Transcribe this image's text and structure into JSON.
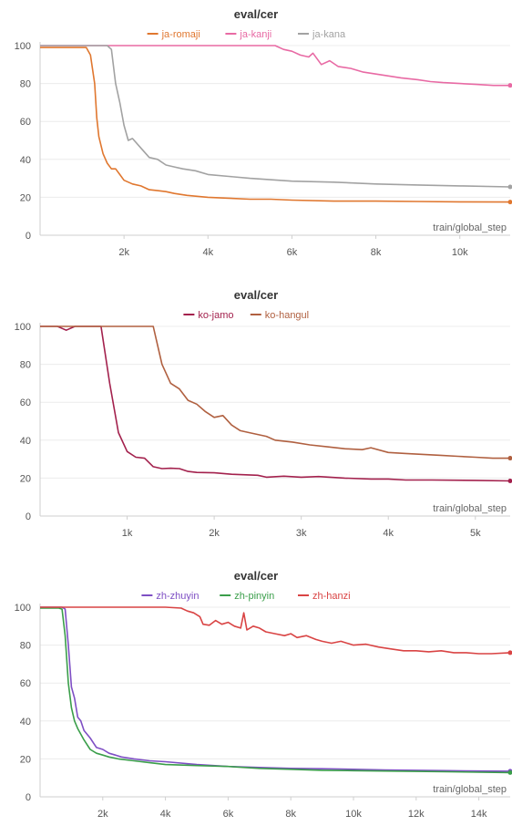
{
  "chart_data": [
    {
      "type": "line",
      "title": "eval/cer",
      "xlabel": "train/global_step",
      "xlim": [
        0,
        11200
      ],
      "ylim": [
        0,
        100
      ],
      "xticks": [
        2000,
        4000,
        6000,
        8000,
        10000
      ],
      "xtick_labels": [
        "2k",
        "4k",
        "6k",
        "8k",
        "10k"
      ],
      "yticks": [
        0,
        20,
        40,
        60,
        80,
        100
      ],
      "legend": "top-center",
      "series": [
        {
          "name": "ja-romaji",
          "color": "#e0772f",
          "points": [
            [
              0,
              99
            ],
            [
              600,
              99
            ],
            [
              1100,
              99
            ],
            [
              1200,
              95
            ],
            [
              1300,
              80
            ],
            [
              1350,
              62
            ],
            [
              1400,
              52
            ],
            [
              1500,
              43
            ],
            [
              1600,
              38
            ],
            [
              1700,
              35
            ],
            [
              1800,
              35
            ],
            [
              1900,
              32
            ],
            [
              2000,
              29
            ],
            [
              2200,
              27
            ],
            [
              2400,
              26
            ],
            [
              2600,
              24
            ],
            [
              2800,
              23.5
            ],
            [
              3000,
              23
            ],
            [
              3200,
              22
            ],
            [
              3500,
              21
            ],
            [
              4000,
              20
            ],
            [
              4500,
              19.5
            ],
            [
              5000,
              19
            ],
            [
              5500,
              19
            ],
            [
              6000,
              18.5
            ],
            [
              7000,
              18
            ],
            [
              8000,
              18
            ],
            [
              9000,
              17.8
            ],
            [
              10000,
              17.6
            ],
            [
              11200,
              17.5
            ]
          ]
        },
        {
          "name": "ja-kanji",
          "color": "#e86aa4",
          "points": [
            [
              0,
              100
            ],
            [
              2000,
              100
            ],
            [
              4000,
              100
            ],
            [
              5600,
              100
            ],
            [
              5800,
              98
            ],
            [
              6000,
              97
            ],
            [
              6200,
              95
            ],
            [
              6400,
              94
            ],
            [
              6500,
              96
            ],
            [
              6700,
              90
            ],
            [
              6900,
              92
            ],
            [
              7100,
              89
            ],
            [
              7400,
              88
            ],
            [
              7700,
              86
            ],
            [
              8000,
              85
            ],
            [
              8300,
              84
            ],
            [
              8600,
              83
            ],
            [
              9000,
              82
            ],
            [
              9300,
              81
            ],
            [
              9600,
              80.5
            ],
            [
              10000,
              80
            ],
            [
              10400,
              79.5
            ],
            [
              10800,
              79
            ],
            [
              11200,
              79
            ]
          ]
        },
        {
          "name": "ja-kana",
          "color": "#a2a2a2",
          "points": [
            [
              0,
              100
            ],
            [
              1600,
              100
            ],
            [
              1700,
              98
            ],
            [
              1800,
              80
            ],
            [
              1900,
              70
            ],
            [
              2000,
              58
            ],
            [
              2100,
              50
            ],
            [
              2200,
              51
            ],
            [
              2400,
              46
            ],
            [
              2600,
              41
            ],
            [
              2800,
              40
            ],
            [
              3000,
              37
            ],
            [
              3200,
              36
            ],
            [
              3400,
              35
            ],
            [
              3700,
              34
            ],
            [
              4000,
              32
            ],
            [
              4500,
              31
            ],
            [
              5000,
              30
            ],
            [
              6000,
              28.5
            ],
            [
              7000,
              28
            ],
            [
              8000,
              27
            ],
            [
              9000,
              26.5
            ],
            [
              10000,
              26
            ],
            [
              11200,
              25.5
            ]
          ]
        }
      ]
    },
    {
      "type": "line",
      "title": "eval/cer",
      "xlabel": "train/global_step",
      "xlim": [
        0,
        5400
      ],
      "ylim": [
        0,
        100
      ],
      "xticks": [
        1000,
        2000,
        3000,
        4000,
        5000
      ],
      "xtick_labels": [
        "1k",
        "2k",
        "3k",
        "4k",
        "5k"
      ],
      "yticks": [
        0,
        20,
        40,
        60,
        80,
        100
      ],
      "legend": "top-center",
      "series": [
        {
          "name": "ko-jamo",
          "color": "#a3214d",
          "points": [
            [
              0,
              100
            ],
            [
              200,
              100
            ],
            [
              300,
              98
            ],
            [
              400,
              100
            ],
            [
              600,
              100
            ],
            [
              700,
              100
            ],
            [
              800,
              70
            ],
            [
              900,
              44
            ],
            [
              1000,
              34
            ],
            [
              1100,
              31
            ],
            [
              1200,
              30.5
            ],
            [
              1300,
              26
            ],
            [
              1400,
              25
            ],
            [
              1500,
              25.2
            ],
            [
              1600,
              25
            ],
            [
              1700,
              23.5
            ],
            [
              1800,
              23
            ],
            [
              2000,
              22.8
            ],
            [
              2200,
              22
            ],
            [
              2500,
              21.5
            ],
            [
              2600,
              20.5
            ],
            [
              2800,
              21
            ],
            [
              3000,
              20.5
            ],
            [
              3200,
              20.8
            ],
            [
              3500,
              20
            ],
            [
              3800,
              19.5
            ],
            [
              4000,
              19.5
            ],
            [
              4200,
              19
            ],
            [
              4500,
              19
            ],
            [
              5000,
              18.8
            ],
            [
              5400,
              18.5
            ]
          ]
        },
        {
          "name": "ko-hangul",
          "color": "#b06040",
          "points": [
            [
              0,
              100
            ],
            [
              600,
              100
            ],
            [
              800,
              100
            ],
            [
              1000,
              100
            ],
            [
              1200,
              100
            ],
            [
              1300,
              100
            ],
            [
              1400,
              80
            ],
            [
              1500,
              70
            ],
            [
              1600,
              67
            ],
            [
              1700,
              61
            ],
            [
              1800,
              59
            ],
            [
              1900,
              55
            ],
            [
              2000,
              52
            ],
            [
              2100,
              53
            ],
            [
              2200,
              48
            ],
            [
              2300,
              45
            ],
            [
              2400,
              44
            ],
            [
              2600,
              42
            ],
            [
              2700,
              40
            ],
            [
              2900,
              39
            ],
            [
              3100,
              37.5
            ],
            [
              3300,
              36.5
            ],
            [
              3500,
              35.5
            ],
            [
              3700,
              35
            ],
            [
              3800,
              36
            ],
            [
              4000,
              33.5
            ],
            [
              4200,
              33
            ],
            [
              4400,
              32.5
            ],
            [
              4600,
              32
            ],
            [
              4800,
              31.5
            ],
            [
              5000,
              31
            ],
            [
              5200,
              30.5
            ],
            [
              5400,
              30.5
            ]
          ]
        }
      ]
    },
    {
      "type": "line",
      "title": "eval/cer",
      "xlabel": "train/global_step",
      "xlim": [
        0,
        15000
      ],
      "ylim": [
        0,
        100
      ],
      "xticks": [
        2000,
        4000,
        6000,
        8000,
        10000,
        12000,
        14000
      ],
      "xtick_labels": [
        "2k",
        "4k",
        "6k",
        "8k",
        "10k",
        "12k",
        "14k"
      ],
      "yticks": [
        0,
        20,
        40,
        60,
        80,
        100
      ],
      "legend": "top-center",
      "series": [
        {
          "name": "zh-zhuyin",
          "color": "#7e4fc4",
          "points": [
            [
              0,
              100
            ],
            [
              700,
              100
            ],
            [
              800,
              99
            ],
            [
              900,
              80
            ],
            [
              1000,
              58
            ],
            [
              1100,
              52
            ],
            [
              1200,
              42
            ],
            [
              1300,
              40
            ],
            [
              1400,
              35
            ],
            [
              1600,
              31
            ],
            [
              1800,
              26
            ],
            [
              2000,
              25
            ],
            [
              2200,
              23
            ],
            [
              2400,
              22
            ],
            [
              2600,
              21
            ],
            [
              3000,
              20
            ],
            [
              3500,
              19
            ],
            [
              4000,
              18.5
            ],
            [
              5000,
              17
            ],
            [
              6000,
              16
            ],
            [
              7000,
              15.5
            ],
            [
              8000,
              15
            ],
            [
              9000,
              14.8
            ],
            [
              10000,
              14.5
            ],
            [
              11000,
              14.2
            ],
            [
              12000,
              14
            ],
            [
              13000,
              13.8
            ],
            [
              14000,
              13.6
            ],
            [
              15000,
              13.5
            ]
          ]
        },
        {
          "name": "zh-pinyin",
          "color": "#3a9e4a",
          "points": [
            [
              0,
              99.5
            ],
            [
              600,
              99.5
            ],
            [
              700,
              99
            ],
            [
              800,
              85
            ],
            [
              900,
              60
            ],
            [
              1000,
              47
            ],
            [
              1100,
              40
            ],
            [
              1200,
              36
            ],
            [
              1400,
              30
            ],
            [
              1600,
              25
            ],
            [
              1800,
              23
            ],
            [
              2000,
              22
            ],
            [
              2200,
              21
            ],
            [
              2500,
              20
            ],
            [
              3000,
              19
            ],
            [
              3500,
              18
            ],
            [
              4000,
              17
            ],
            [
              5000,
              16.5
            ],
            [
              6000,
              16
            ],
            [
              7000,
              15
            ],
            [
              8000,
              14.5
            ],
            [
              9000,
              14
            ],
            [
              10000,
              13.8
            ],
            [
              11000,
              13.6
            ],
            [
              12000,
              13.4
            ],
            [
              13000,
              13.2
            ],
            [
              14000,
              13
            ],
            [
              15000,
              12.8
            ]
          ]
        },
        {
          "name": "zh-hanzi",
          "color": "#d94444",
          "points": [
            [
              0,
              100
            ],
            [
              2000,
              100
            ],
            [
              3000,
              100
            ],
            [
              4000,
              100
            ],
            [
              4500,
              99.5
            ],
            [
              4700,
              98
            ],
            [
              4900,
              97
            ],
            [
              5100,
              95
            ],
            [
              5200,
              91
            ],
            [
              5400,
              90.5
            ],
            [
              5600,
              93
            ],
            [
              5800,
              91
            ],
            [
              6000,
              92
            ],
            [
              6200,
              90
            ],
            [
              6400,
              89
            ],
            [
              6500,
              97
            ],
            [
              6600,
              88
            ],
            [
              6800,
              90
            ],
            [
              7000,
              89
            ],
            [
              7200,
              87
            ],
            [
              7500,
              86
            ],
            [
              7800,
              85
            ],
            [
              8000,
              86
            ],
            [
              8200,
              84
            ],
            [
              8500,
              85
            ],
            [
              8800,
              83
            ],
            [
              9000,
              82
            ],
            [
              9300,
              81
            ],
            [
              9600,
              82
            ],
            [
              10000,
              80
            ],
            [
              10400,
              80.5
            ],
            [
              10800,
              79
            ],
            [
              11200,
              78
            ],
            [
              11600,
              77
            ],
            [
              12000,
              77
            ],
            [
              12400,
              76.5
            ],
            [
              12800,
              77
            ],
            [
              13200,
              76
            ],
            [
              13600,
              76
            ],
            [
              14000,
              75.5
            ],
            [
              14400,
              75.5
            ],
            [
              15000,
              76
            ]
          ]
        }
      ]
    }
  ]
}
